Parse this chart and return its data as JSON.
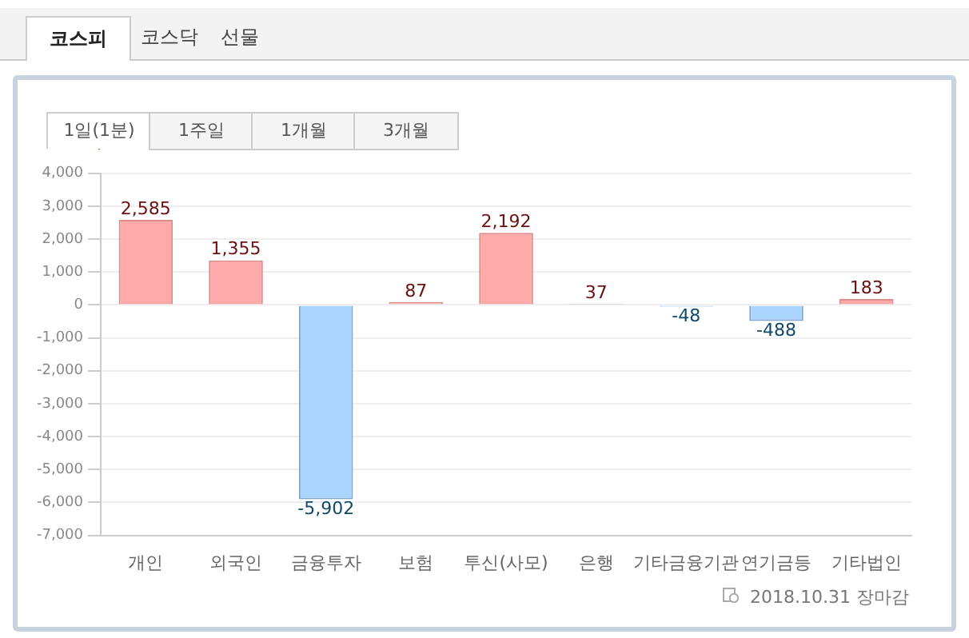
{
  "chart_data": {
    "type": "bar",
    "categories": [
      "개인",
      "외국인",
      "금융투자",
      "보험",
      "투신(사모)",
      "은행",
      "기타금융기관",
      "연기금등",
      "기타법인"
    ],
    "values": [
      2585,
      1355,
      -5902,
      87,
      2192,
      37,
      -48,
      -488,
      183
    ],
    "colors": [
      "#ffaaaa",
      "#ffaaaa",
      "#aad4ff",
      "#ffaaaa",
      "#ffaaaa",
      "#ffaaaa",
      "#aad4ff",
      "#aad4ff",
      "#ffaaaa"
    ],
    "value_labels": [
      "2,585",
      "1,355",
      "-5,902",
      "87",
      "2,192",
      "37",
      "-48",
      "-488",
      "183"
    ],
    "ylim": [
      -7000,
      4000
    ],
    "yticks": [
      {
        "value": -7000,
        "label": "-7,000"
      },
      {
        "value": -6000,
        "label": "-6,000"
      },
      {
        "value": -5000,
        "label": "-5,000"
      },
      {
        "value": -4000,
        "label": "-4,000"
      },
      {
        "value": -3000,
        "label": "-3,000"
      },
      {
        "value": -2000,
        "label": "-2,000"
      },
      {
        "value": -1000,
        "label": "-1,000"
      },
      {
        "value": 0,
        "label": "0"
      },
      {
        "value": 1000,
        "label": "1,000"
      },
      {
        "value": 2000,
        "label": "2,000"
      },
      {
        "value": 3000,
        "label": "3,000"
      },
      {
        "value": 4000,
        "label": "4,000"
      }
    ],
    "grid": "y",
    "legend": false,
    "annotations": [
      "코스피",
      "코스닥",
      "선물",
      "1일(1분)",
      "1주일",
      "1개월",
      "3개월",
      "2018.10.31 장마감"
    ]
  }
}
